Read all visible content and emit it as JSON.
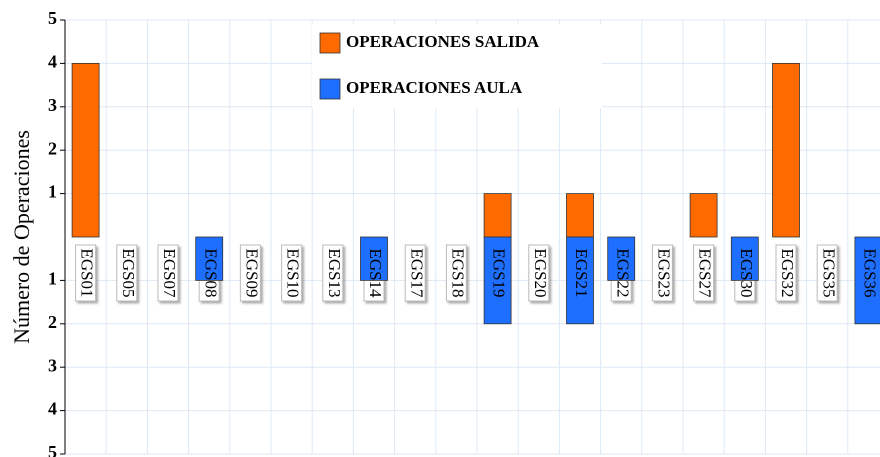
{
  "chart_data": {
    "type": "bar",
    "y_label": "Número de Operaciones",
    "categories": [
      "EGS01",
      "EGS05",
      "EGS07",
      "EGS08",
      "EGS09",
      "EGS10",
      "EGS13",
      "EGS14",
      "EGS17",
      "EGS18",
      "EGS19",
      "EGS20",
      "EGS21",
      "EGS22",
      "EGS23",
      "EGS27",
      "EGS30",
      "EGS32",
      "EGS35",
      "EGS36"
    ],
    "series": [
      {
        "name": "OPERACIONES SALIDA",
        "color": "#ff6a00",
        "values": [
          4,
          0,
          0,
          0,
          0,
          0,
          0,
          0,
          0,
          0,
          1,
          0,
          1,
          0,
          0,
          1,
          0,
          4,
          0,
          0
        ]
      },
      {
        "name": "OPERACIONES AULA",
        "color": "#1e6fff",
        "values": [
          0,
          0,
          0,
          -1,
          0,
          0,
          0,
          -1,
          0,
          0,
          -2,
          0,
          -2,
          -1,
          0,
          0,
          -1,
          0,
          0,
          -2
        ]
      }
    ],
    "ylim": [
      -5,
      5
    ],
    "yticks": [
      5,
      4,
      3,
      2,
      1,
      {
        "value": -1,
        "label": "1"
      },
      {
        "value": -2,
        "label": "2"
      },
      {
        "value": -3,
        "label": "3"
      },
      {
        "value": -4,
        "label": "4"
      },
      {
        "value": -5,
        "label": "5"
      }
    ],
    "grid": true
  }
}
